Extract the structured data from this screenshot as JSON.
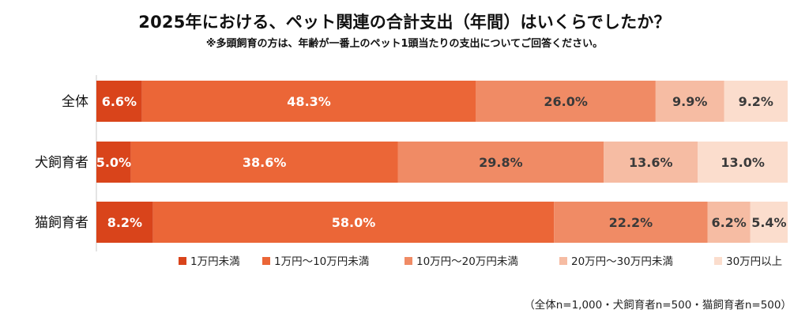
{
  "chart_data": {
    "type": "bar",
    "orientation": "horizontal",
    "stacked": true,
    "percent_stacked": true,
    "title": "2025年における、ペット関連の合計支出（年間）はいくらでしたか？",
    "subtitle": "※多頭飼育の方は、年齢が一番上のペット1頭当たりの支出についてご回答ください。",
    "categories": [
      "全体",
      "犬飼育者",
      "猫飼育者"
    ],
    "series": [
      {
        "name": "1万円未満",
        "color": "#d9441b",
        "values": [
          6.6,
          5.0,
          8.2
        ],
        "labels": [
          "6.6%",
          "5.0%",
          "8.2%"
        ]
      },
      {
        "name": "1万円～10万円未満",
        "color": "#eb6637",
        "values": [
          48.3,
          38.6,
          58.0
        ],
        "labels": [
          "48.3%",
          "38.6%",
          "58.0%"
        ]
      },
      {
        "name": "10万円～20万円未満",
        "color": "#f08b65",
        "values": [
          26.0,
          29.8,
          22.2
        ],
        "labels": [
          "26.0%",
          "29.8%",
          "22.2%"
        ]
      },
      {
        "name": "20万円～30万円未満",
        "color": "#f6bca3",
        "values": [
          9.9,
          13.6,
          6.2
        ],
        "labels": [
          "9.9%",
          "13.6%",
          "6.2%"
        ]
      },
      {
        "name": "30万円以上",
        "color": "#fbddcd",
        "values": [
          9.2,
          13.0,
          5.4
        ],
        "labels": [
          "9.2%",
          "13.0%",
          "5.4%"
        ]
      }
    ],
    "label_colors": [
      "#ffffff",
      "#ffffff",
      "#3a3a3a",
      "#3a3a3a",
      "#3a3a3a"
    ],
    "xlim": [
      0,
      100
    ],
    "grid": false,
    "legend_position": "bottom",
    "note": "（全体n=1,000・犬飼育者n=500・猫飼育者n=500）"
  }
}
